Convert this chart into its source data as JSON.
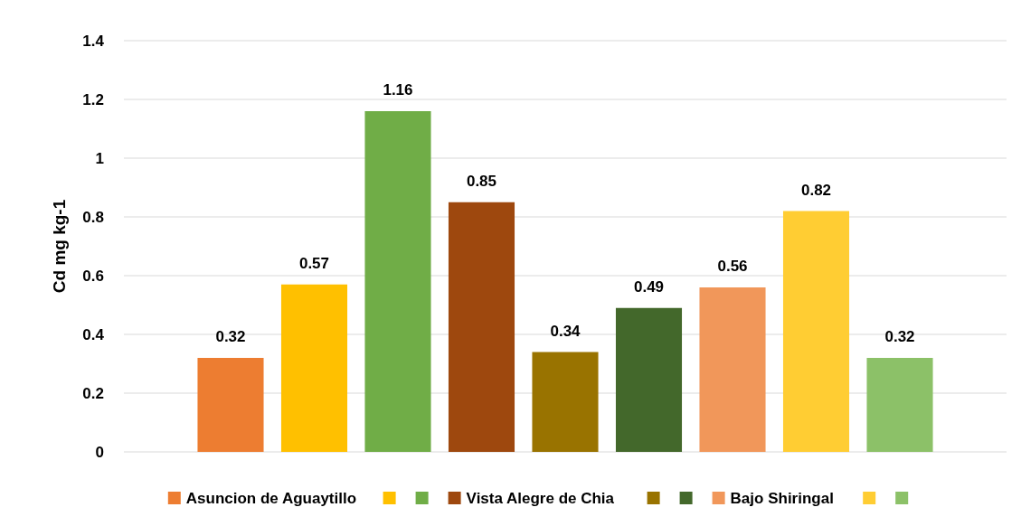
{
  "chart_data": {
    "type": "bar",
    "ylabel": "Cd mg kg-1",
    "categories": [
      null
    ],
    "series": [
      {
        "name": "Asuncion de Aguaytillo",
        "color": "#ed7d31",
        "values": [
          0.32
        ]
      },
      {
        "color": "#ffc000",
        "values": [
          0.57
        ]
      },
      {
        "color": "#70ad47",
        "values": [
          1.16
        ]
      },
      {
        "name": "Vista Alegre de Chia",
        "color": "#9e480e",
        "values": [
          0.85
        ]
      },
      {
        "color": "#997300",
        "values": [
          0.34
        ]
      },
      {
        "color": "#43682b",
        "values": [
          0.49
        ]
      },
      {
        "name": "Bajo Shiringal",
        "color": "#f1975a",
        "values": [
          0.56
        ]
      },
      {
        "color": "#ffcd33",
        "values": [
          0.82
        ]
      },
      {
        "color": "#8cc168",
        "values": [
          0.32
        ]
      }
    ],
    "ylim": [
      0,
      1.4
    ],
    "yticks": [
      0,
      0.2,
      0.4,
      0.6,
      0.8,
      1,
      1.2,
      1.4
    ],
    "grid": "y",
    "data_labels": true,
    "legend": "bottom",
    "tick_labels": "y"
  }
}
